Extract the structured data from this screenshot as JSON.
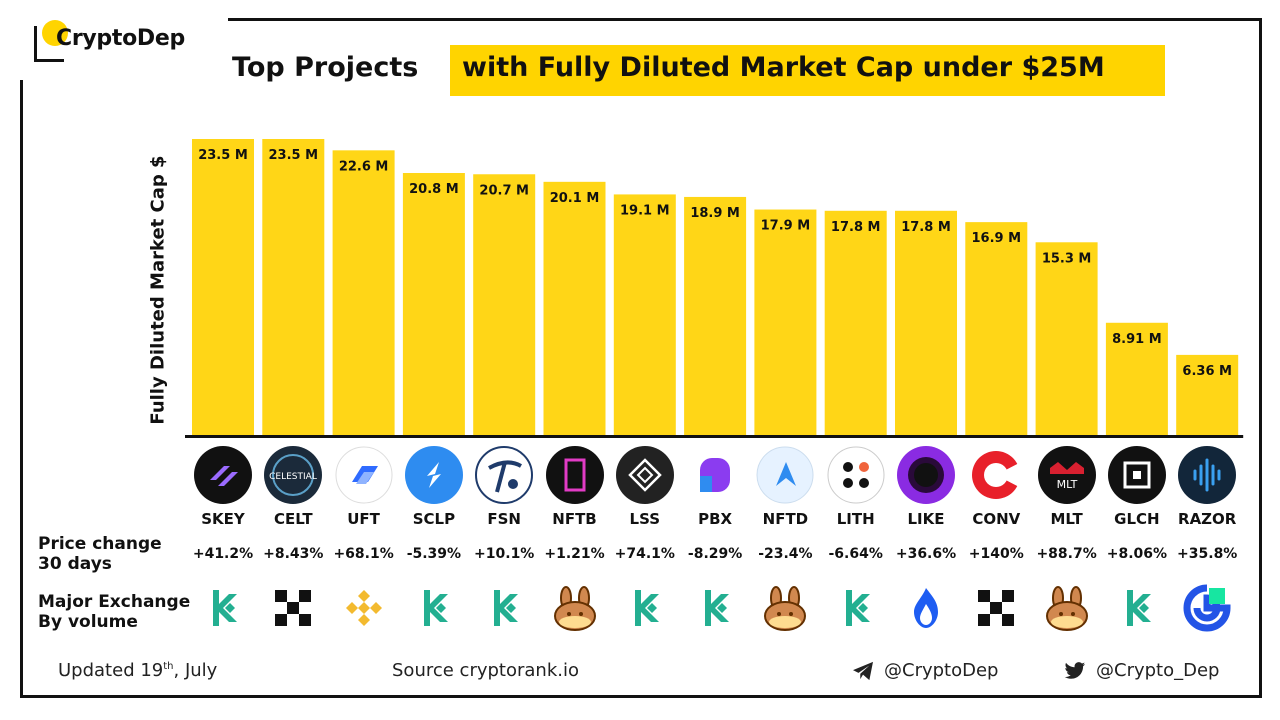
{
  "brand": {
    "name": "CryptoDep"
  },
  "title": {
    "part1": "Top Projects",
    "part2": "with Fully Diluted Market Cap under $25M"
  },
  "chart_data": {
    "type": "bar",
    "title": "Top Projects with Fully Diluted Market Cap under $25M",
    "ylabel": "Fully Diluted  Market Cap $",
    "xlabel": "",
    "ylim": [
      0,
      25
    ],
    "unit": "M",
    "categories": [
      "SKEY",
      "CELT",
      "UFT",
      "SCLP",
      "FSN",
      "NFTB",
      "LSS",
      "PBX",
      "NFTD",
      "LITH",
      "LIKE",
      "CONV",
      "MLT",
      "GLCH",
      "RAZOR"
    ],
    "values": [
      23.5,
      23.5,
      22.6,
      20.8,
      20.7,
      20.1,
      19.1,
      18.9,
      17.9,
      17.8,
      17.8,
      16.9,
      15.3,
      8.91,
      6.36
    ],
    "labels": [
      "23.5 M",
      "23.5 M",
      "22.6 M",
      "20.8 M",
      "20.7 M",
      "20.1 M",
      "19.1 M",
      "18.9 M",
      "17.9 M",
      "17.8 M",
      "17.8 M",
      "16.9 M",
      "15.3 M",
      "8.91 M",
      "6.36 M"
    ],
    "bar_color": "#FFD617"
  },
  "rows": {
    "price_label_1": "Price change",
    "price_label_2": "30 days",
    "price_changes": [
      "+41.2%",
      "+8.43%",
      "+68.1%",
      "-5.39%",
      "+10.1%",
      "+1.21%",
      "+74.1%",
      "-8.29%",
      "-23.4%",
      "-6.64%",
      "+36.6%",
      "+140%",
      "+88.7%",
      "+8.06%",
      "+35.8%"
    ],
    "exchange_label_1": "Major Exchange",
    "exchange_label_2": "By volume",
    "exchanges": [
      "kucoin-icon",
      "okx-icon",
      "binance-icon",
      "kucoin-icon",
      "kucoin-icon",
      "pancakeswap-icon",
      "kucoin-icon",
      "kucoin-icon",
      "pancakeswap-icon",
      "kucoin-icon",
      "huobi-icon",
      "okx-icon",
      "pancakeswap-icon",
      "kucoin-icon",
      "gateio-icon"
    ],
    "coin_icons": [
      "skey-logo-icon",
      "celt-logo-icon",
      "uft-logo-icon",
      "sclp-logo-icon",
      "fsn-logo-icon",
      "nftb-logo-icon",
      "lss-logo-icon",
      "pbx-logo-icon",
      "nftd-logo-icon",
      "lith-logo-icon",
      "like-logo-icon",
      "conv-logo-icon",
      "mlt-logo-icon",
      "glch-logo-icon",
      "razor-logo-icon"
    ]
  },
  "coin_logo_text": {
    "celt": "CELESTIAL",
    "mlt": "MLT"
  },
  "footer": {
    "updated_prefix": "Updated 19",
    "updated_sup": "th",
    "updated_suffix": ", July",
    "source": "Source  cryptorank.io",
    "telegram": "@CryptoDep",
    "twitter": "@Crypto_Dep"
  },
  "colors": {
    "accent": "#FFD400",
    "kucoin": "#23AF91",
    "binance": "#F3BA2F",
    "gate": "#2354E6",
    "huobi": "#1E5DF2"
  }
}
